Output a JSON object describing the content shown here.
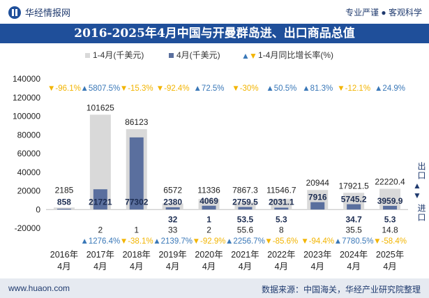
{
  "header": {
    "brand": "华经情报网",
    "tagline": "专业严谨 ● 客观科学"
  },
  "title": "2016-2025年4月中国与开曼群岛进、出口商品总值",
  "footer": {
    "website": "www.huaon.com",
    "source": "数据来源：中国海关，华经产业研究院整理"
  },
  "side_labels": {
    "export": "出口",
    "import": "进口"
  },
  "chart_data": {
    "type": "bar",
    "categories": [
      "2016年\n4月",
      "2017年\n4月",
      "2018年\n4月",
      "2019年\n4月",
      "2020年\n4月",
      "2021年\n4月",
      "2022年\n4月",
      "2023年\n4月",
      "2024年\n4月",
      "2025年\n4月"
    ],
    "ylim": [
      -20000,
      140000
    ],
    "yticks": [
      -20000,
      0,
      20000,
      40000,
      60000,
      80000,
      100000,
      120000,
      140000
    ],
    "legend": [
      {
        "label": "1-4月(千美元)",
        "color": "#d9d9d9"
      },
      {
        "label": "4月(千美元)",
        "color": "#5a6f9e"
      },
      {
        "label": "1-4月同比增长率(%)",
        "color_up": "#3a78b8",
        "color_down": "#f2b400"
      }
    ],
    "export": {
      "cumulative": [
        2185,
        101625,
        86123,
        6572,
        11336,
        7867.3,
        11546.7,
        20944,
        17921.5,
        22220.4
      ],
      "cumulative_labels": [
        "2185",
        "101625",
        "86123",
        "6572",
        "11336",
        "7867.3",
        "11546.7",
        "20944",
        "17921.5",
        "22220.4"
      ],
      "month": [
        858,
        21721,
        77302,
        2380,
        4069,
        2759.5,
        2031.1,
        7916,
        5745.2,
        3959.9
      ],
      "month_labels": [
        "858",
        "21721",
        "77302",
        "2380",
        "4069",
        "2759.5",
        "2031.1",
        "7916",
        "5745.2",
        "3959.9"
      ],
      "growth": [
        -96.1,
        5807.5,
        -15.3,
        -92.4,
        72.5,
        -30,
        50.5,
        81.3,
        -12.1,
        24.9
      ],
      "growth_labels": [
        "-96.1%",
        "5807.5%",
        "-15.3%",
        "-92.4%",
        "72.5%",
        "-30%",
        "50.5%",
        "81.3%",
        "-12.1%",
        "24.9%"
      ]
    },
    "import": {
      "month_labels": [
        "",
        "",
        "",
        "32",
        "1",
        "53.5",
        "5.3",
        "",
        "34.7",
        "5.3"
      ],
      "cumulative_labels": [
        "",
        "2",
        "1",
        "33",
        "2",
        "55.6",
        "8",
        "",
        "35.5",
        "14.8"
      ],
      "growth": [
        null,
        1276.4,
        -38.1,
        2139.7,
        -92.9,
        2256.7,
        -85.6,
        -94.4,
        7780.5,
        -58.4
      ],
      "growth_labels": [
        "",
        "1276.4%",
        "-38.1%",
        "2139.7%",
        "-92.9%",
        "2256.7%",
        "-85.6%",
        "-94.4%",
        "7780.5%",
        "-58.4%"
      ]
    }
  }
}
